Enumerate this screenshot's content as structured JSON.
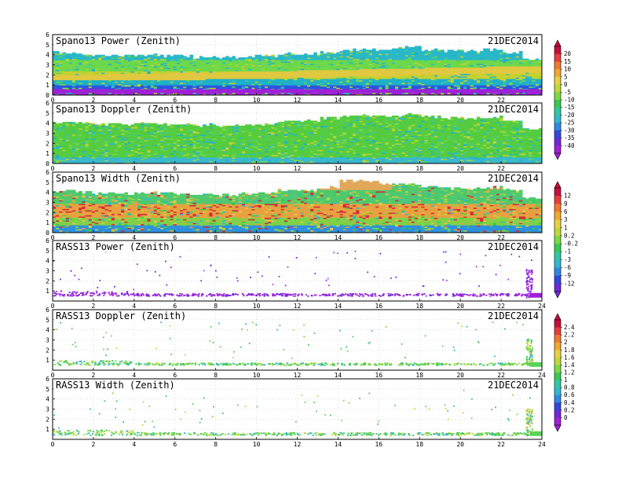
{
  "chart_data": [
    {
      "type": "heatmap",
      "title": "Spano13 Power (Zenith)",
      "date": "21DEC2014",
      "xlim": [
        0,
        24
      ],
      "ylim": [
        0,
        6
      ],
      "x_ticks": [
        "0",
        "2",
        "4",
        "6",
        "8",
        "10",
        "12",
        "14",
        "16",
        "18",
        "20",
        "22"
      ],
      "y_ticks": [
        "0",
        "1",
        "2",
        "3",
        "4",
        "5",
        "6"
      ],
      "grid": true,
      "palette": "power",
      "fill": "dense",
      "data_top_km": [
        4.3,
        4.1,
        4.0,
        4.0,
        4.1,
        4.0,
        3.9,
        3.9,
        3.8,
        3.9,
        4.0,
        4.2,
        4.2,
        4.3,
        4.6,
        4.6,
        4.7,
        4.8,
        4.6,
        4.5,
        4.5,
        4.6,
        4.3,
        3.6
      ],
      "band_km": [
        {
          "range": [
            0.0,
            0.55
          ],
          "color": "#a020d8"
        },
        {
          "range": [
            0.55,
            1.0
          ],
          "color": "#2e55e0"
        },
        {
          "range": [
            1.0,
            1.6
          ],
          "color": "#1fb0c8"
        },
        {
          "range": [
            1.6,
            2.3
          ],
          "color": "#c8d030"
        },
        {
          "range": [
            2.3,
            3.5
          ],
          "color": "#6dd84a"
        },
        {
          "range": [
            3.5,
            4.8
          ],
          "color": "#29b8c8"
        }
      ]
    },
    {
      "type": "heatmap",
      "title": "Spano13 Doppler (Zenith)",
      "date": "21DEC2014",
      "xlim": [
        0,
        24
      ],
      "ylim": [
        0,
        6
      ],
      "x_ticks": [
        "0",
        "2",
        "4",
        "6",
        "8",
        "10",
        "12",
        "14",
        "16",
        "18",
        "20",
        "22"
      ],
      "y_ticks": [
        "0",
        "1",
        "2",
        "3",
        "4",
        "5",
        "6"
      ],
      "grid": true,
      "palette": "power",
      "fill": "dense",
      "data_top_km": [
        4.2,
        4.1,
        4.0,
        4.0,
        4.1,
        4.0,
        3.9,
        3.9,
        3.8,
        3.9,
        4.0,
        4.3,
        4.3,
        4.6,
        4.8,
        4.8,
        4.8,
        4.9,
        4.7,
        4.6,
        4.6,
        4.7,
        4.4,
        3.5
      ],
      "band_km": [
        {
          "range": [
            0.0,
            0.6
          ],
          "color": "#3ab8d0"
        },
        {
          "range": [
            0.6,
            4.9
          ],
          "color": "#55cc40"
        }
      ]
    },
    {
      "type": "heatmap",
      "title": "Spano13 Width (Zenith)",
      "date": "21DEC2014",
      "xlim": [
        0,
        24
      ],
      "ylim": [
        0,
        6
      ],
      "x_ticks": [
        "0",
        "2",
        "4",
        "6",
        "8",
        "10",
        "12",
        "14",
        "16",
        "18",
        "20",
        "22"
      ],
      "y_ticks": [
        "0",
        "1",
        "2",
        "3",
        "4",
        "5",
        "6"
      ],
      "grid": true,
      "palette": "width",
      "fill": "dense",
      "data_top_km": [
        4.2,
        4.1,
        4.0,
        4.0,
        4.1,
        4.0,
        3.9,
        3.9,
        3.8,
        3.9,
        4.0,
        4.3,
        4.3,
        4.6,
        5.2,
        5.2,
        4.9,
        4.9,
        4.6,
        4.5,
        4.5,
        4.6,
        4.3,
        3.5
      ],
      "band_km": [
        {
          "range": [
            0.0,
            0.7
          ],
          "color": "#2e90e0"
        },
        {
          "range": [
            0.7,
            1.4
          ],
          "color": "#80d048"
        },
        {
          "range": [
            1.4,
            2.8
          ],
          "color": "#e8a040"
        },
        {
          "range": [
            2.8,
            4.0
          ],
          "color": "#50c870"
        }
      ]
    },
    {
      "type": "scatter",
      "title": "RASS13 Power (Zenith)",
      "date": "21DEC2014",
      "xlim": [
        0,
        24
      ],
      "ylim": [
        0,
        6
      ],
      "x_ticks": [
        "0",
        "2",
        "4",
        "6",
        "8",
        "10",
        "12",
        "14",
        "16",
        "18",
        "20",
        "22",
        "24"
      ],
      "y_ticks": [
        "1",
        "2",
        "3",
        "4",
        "5",
        "6"
      ],
      "grid": true,
      "palette": "rass_power",
      "fill": "sparse",
      "base_km": [
        0.55,
        1.05
      ],
      "burst_hours": [
        23.2,
        23.5
      ],
      "burst_top_km": 3.3
    },
    {
      "type": "scatter",
      "title": "RASS13 Doppler (Zenith)",
      "date": "21DEC2014",
      "xlim": [
        0,
        24
      ],
      "ylim": [
        0,
        6
      ],
      "x_ticks": [
        "0",
        "2",
        "4",
        "6",
        "8",
        "10",
        "12",
        "14",
        "16",
        "18",
        "20",
        "22",
        "24"
      ],
      "y_ticks": [
        "1",
        "2",
        "3",
        "4",
        "5",
        "6"
      ],
      "grid": true,
      "palette": "rass_dopp",
      "fill": "sparse",
      "base_km": [
        0.55,
        1.0
      ],
      "burst_hours": [
        23.2,
        23.5
      ],
      "burst_top_km": 3.2
    },
    {
      "type": "scatter",
      "title": "RASS13 Width (Zenith)",
      "date": "21DEC2014",
      "xlim": [
        0,
        24
      ],
      "ylim": [
        0,
        6
      ],
      "x_ticks": [
        "0",
        "2",
        "4",
        "6",
        "8",
        "10",
        "12",
        "14",
        "16",
        "18",
        "20",
        "22",
        "24"
      ],
      "y_ticks": [
        "1",
        "2",
        "3",
        "4",
        "5",
        "6"
      ],
      "grid": true,
      "palette": "rass_dopp",
      "fill": "sparse",
      "base_km": [
        0.45,
        1.0
      ],
      "burst_hours": [
        23.2,
        23.5
      ],
      "burst_top_km": 3.1
    }
  ],
  "colorbars": [
    {
      "labels": [
        "20",
        "15",
        "10",
        "5",
        "0",
        "-5",
        "-10",
        "-15",
        "-20",
        "-25",
        "-30",
        "-35",
        "-40"
      ],
      "colors": [
        "#c8103c",
        "#e83c3c",
        "#f07830",
        "#f0a830",
        "#e8d040",
        "#c0d838",
        "#7ed848",
        "#3cc850",
        "#30c8a0",
        "#30b8d0",
        "#3088e0",
        "#3048e0",
        "#7028d8",
        "#a020d8"
      ]
    },
    {
      "labels": [
        "12",
        "9",
        "6",
        "3",
        "1",
        "0.2",
        "-0.2",
        "-1",
        "-3",
        "-6",
        "-9",
        "-12"
      ],
      "colors": [
        "#c8103c",
        "#e83c3c",
        "#f07830",
        "#f0a830",
        "#e8d040",
        "#c0d838",
        "#7ed848",
        "#3cc850",
        "#30c8a0",
        "#30b8d0",
        "#3088e0",
        "#3048e0",
        "#7028d8"
      ]
    },
    {
      "labels": [
        "2.4",
        "2.2",
        "2",
        "1.8",
        "1.6",
        "1.4",
        "1.2",
        "1",
        "0.8",
        "0.6",
        "0.4",
        "0.2",
        "0"
      ],
      "colors": [
        "#c8103c",
        "#e83c3c",
        "#f07830",
        "#f0a830",
        "#e8d040",
        "#c0d838",
        "#7ed848",
        "#3cc850",
        "#30c8a0",
        "#30b8d0",
        "#3088e0",
        "#3048e0",
        "#7028d8",
        "#a020d8"
      ]
    }
  ]
}
